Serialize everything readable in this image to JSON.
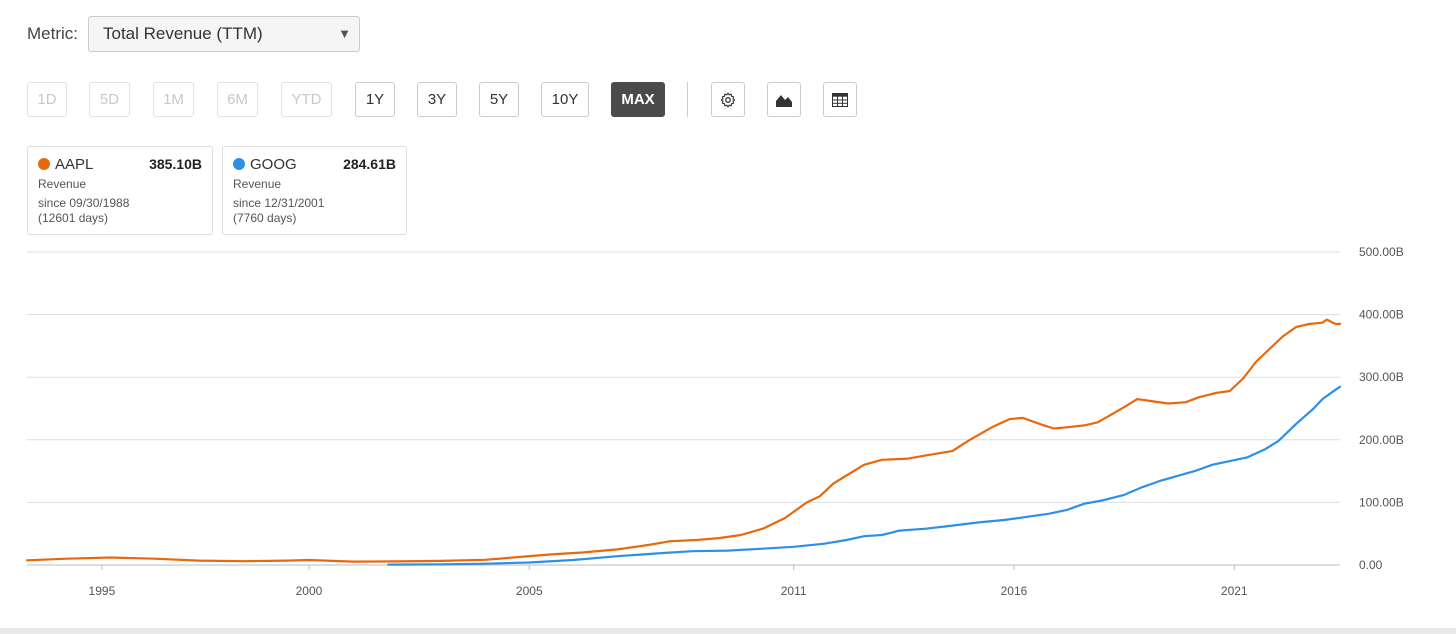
{
  "metric": {
    "label": "Metric:",
    "selected": "Total Revenue (TTM)"
  },
  "ranges": [
    {
      "label": "1D",
      "state": "disabled"
    },
    {
      "label": "5D",
      "state": "disabled"
    },
    {
      "label": "1M",
      "state": "disabled"
    },
    {
      "label": "6M",
      "state": "disabled"
    },
    {
      "label": "YTD",
      "state": "disabled"
    },
    {
      "label": "1Y",
      "state": "normal"
    },
    {
      "label": "3Y",
      "state": "normal"
    },
    {
      "label": "5Y",
      "state": "normal"
    },
    {
      "label": "10Y",
      "state": "normal"
    },
    {
      "label": "MAX",
      "state": "active"
    }
  ],
  "tools": [
    {
      "icon": "gear-icon"
    },
    {
      "icon": "chart-type-icon"
    },
    {
      "icon": "table-icon"
    }
  ],
  "legend": [
    {
      "ticker": "AAPL",
      "value": "385.10B",
      "metric": "Revenue",
      "since": "since 09/30/1988",
      "days": "(12601 days)",
      "color": "#e8680c"
    },
    {
      "ticker": "GOOG",
      "value": "284.61B",
      "metric": "Revenue",
      "since": "since 12/31/2001",
      "days": "(7760 days)",
      "color": "#2e8fe6"
    }
  ],
  "chart_data": {
    "type": "line",
    "x_unit": "year",
    "xlim": [
      1993.6,
      2023.4
    ],
    "ylim": [
      0,
      500
    ],
    "y_ticks": [
      "0.00",
      "100.00B",
      "200.00B",
      "300.00B",
      "400.00B",
      "500.00B"
    ],
    "x_ticks": [
      "1995",
      "2000",
      "2005",
      "2011",
      "2016",
      "2021"
    ],
    "x_tick_values": [
      1995.3,
      2000.0,
      2005.0,
      2011.0,
      2016.0,
      2021.0
    ],
    "grid": true,
    "series": [
      {
        "name": "AAPL",
        "color": "#e8680c",
        "points": [
          [
            1993.6,
            7.5
          ],
          [
            1994.5,
            10
          ],
          [
            1995.5,
            12
          ],
          [
            1996.5,
            10
          ],
          [
            1997.5,
            7
          ],
          [
            1998.5,
            6
          ],
          [
            1999.5,
            7
          ],
          [
            2000.0,
            8
          ],
          [
            2001.0,
            5.5
          ],
          [
            2002.0,
            5.7
          ],
          [
            2003.0,
            6.5
          ],
          [
            2004.0,
            8.3
          ],
          [
            2004.8,
            13
          ],
          [
            2005.5,
            17
          ],
          [
            2006.2,
            20
          ],
          [
            2007.0,
            25
          ],
          [
            2007.7,
            32
          ],
          [
            2008.2,
            38
          ],
          [
            2008.8,
            40
          ],
          [
            2009.3,
            43
          ],
          [
            2009.8,
            48
          ],
          [
            2010.3,
            58
          ],
          [
            2010.8,
            75
          ],
          [
            2011.3,
            100
          ],
          [
            2011.6,
            110
          ],
          [
            2011.9,
            130
          ],
          [
            2012.2,
            143
          ],
          [
            2012.6,
            160
          ],
          [
            2013.0,
            168
          ],
          [
            2013.6,
            170
          ],
          [
            2014.0,
            175
          ],
          [
            2014.6,
            182
          ],
          [
            2015.0,
            200
          ],
          [
            2015.5,
            220
          ],
          [
            2015.9,
            233
          ],
          [
            2016.2,
            235
          ],
          [
            2016.6,
            225
          ],
          [
            2016.9,
            218
          ],
          [
            2017.2,
            220
          ],
          [
            2017.6,
            223
          ],
          [
            2017.9,
            228
          ],
          [
            2018.2,
            240
          ],
          [
            2018.5,
            252
          ],
          [
            2018.8,
            265
          ],
          [
            2019.1,
            262
          ],
          [
            2019.5,
            258
          ],
          [
            2019.9,
            260
          ],
          [
            2020.2,
            268
          ],
          [
            2020.6,
            275
          ],
          [
            2020.9,
            278
          ],
          [
            2021.2,
            298
          ],
          [
            2021.5,
            325
          ],
          [
            2021.8,
            345
          ],
          [
            2022.1,
            365
          ],
          [
            2022.4,
            380
          ],
          [
            2022.7,
            385
          ],
          [
            2023.0,
            387
          ],
          [
            2023.1,
            392
          ],
          [
            2023.3,
            385
          ],
          [
            2023.4,
            385.1
          ]
        ]
      },
      {
        "name": "GOOG",
        "color": "#2e8fe6",
        "points": [
          [
            2001.8,
            0.6
          ],
          [
            2003.0,
            1.0
          ],
          [
            2004.0,
            2.0
          ],
          [
            2005.0,
            4.0
          ],
          [
            2006.0,
            8.0
          ],
          [
            2007.0,
            14
          ],
          [
            2008.0,
            19
          ],
          [
            2008.7,
            22
          ],
          [
            2009.5,
            23
          ],
          [
            2010.3,
            26
          ],
          [
            2011.0,
            29
          ],
          [
            2011.7,
            34
          ],
          [
            2012.2,
            40
          ],
          [
            2012.6,
            46
          ],
          [
            2013.0,
            48
          ],
          [
            2013.4,
            55
          ],
          [
            2014.0,
            58
          ],
          [
            2014.6,
            63
          ],
          [
            2015.2,
            68
          ],
          [
            2015.8,
            72
          ],
          [
            2016.3,
            77
          ],
          [
            2016.8,
            82
          ],
          [
            2017.2,
            88
          ],
          [
            2017.6,
            98
          ],
          [
            2018.0,
            103
          ],
          [
            2018.5,
            112
          ],
          [
            2018.9,
            124
          ],
          [
            2019.3,
            134
          ],
          [
            2019.7,
            142
          ],
          [
            2020.1,
            150
          ],
          [
            2020.5,
            160
          ],
          [
            2020.9,
            166
          ],
          [
            2021.3,
            172
          ],
          [
            2021.7,
            185
          ],
          [
            2022.0,
            198
          ],
          [
            2022.4,
            225
          ],
          [
            2022.8,
            250
          ],
          [
            2023.0,
            265
          ],
          [
            2023.2,
            275
          ],
          [
            2023.3,
            280
          ],
          [
            2023.4,
            284.61
          ]
        ]
      }
    ]
  }
}
